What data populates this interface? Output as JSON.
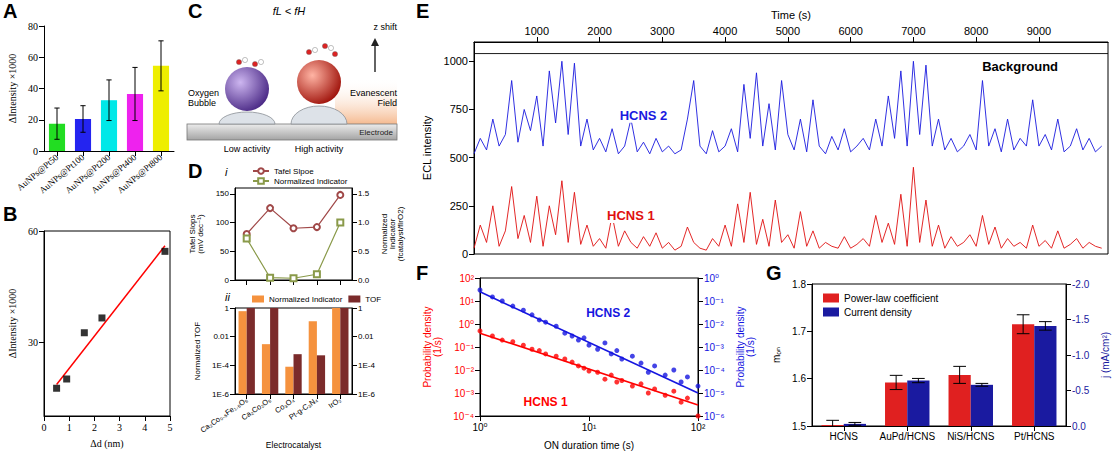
{
  "chart_data": [
    {
      "panel": "A",
      "type": "bar",
      "ylabel": "ΔIntensity ×1000",
      "categories": [
        "AuNPs@Pt50",
        "AuNPs@Pt100",
        "AuNPs@Pt200",
        "AuNPs@Pt400",
        "AuNPs@Pt800"
      ],
      "values": [
        17.5,
        20.5,
        32.5,
        36.5,
        54.5
      ],
      "errors": [
        10,
        8.5,
        13,
        17,
        16
      ],
      "colors": [
        "#22dd22",
        "#2424f0",
        "#00e8e8",
        "#ee22ee",
        "#eeee00"
      ],
      "ylim": [
        0,
        80
      ],
      "yticks": [
        0,
        20,
        40,
        60,
        80
      ],
      "grid": false
    },
    {
      "panel": "B",
      "type": "scatter",
      "xlabel": "Δd (nm)",
      "ylabel": "ΔIntensity ×1000",
      "series": [
        {
          "type": "scatter",
          "marker": "square",
          "color": "#000000",
          "x": [
            0.5,
            0.9,
            1.6,
            2.3,
            4.8
          ],
          "values": [
            17.5,
            20,
            32.5,
            36.5,
            54.5
          ]
        },
        {
          "type": "line",
          "color": "#ff0000",
          "x": [
            0.5,
            4.8
          ],
          "values": [
            18.5,
            56
          ]
        }
      ],
      "xlim": [
        0,
        5
      ],
      "xticks": [
        0,
        1,
        2,
        3,
        4,
        5
      ],
      "ylim": [
        10,
        60
      ],
      "yticks": [
        30,
        60
      ],
      "grid": false
    },
    {
      "panel": "D",
      "subpanel": "i",
      "type": "line",
      "tick_labels": "y",
      "categories": [
        "Ca₂Co₀.₅Fe₁.₅O₅",
        "Ca₂Co₂O₅",
        "Co₃O₄",
        "Pt-g-C₃N₄",
        "IrO₂"
      ],
      "ylabel": "Tafel Slops (mV dec⁻¹)",
      "y2label": "Normalized Indicator (fcatalyst/fIrO2)",
      "legend": "upper left",
      "series": [
        {
          "name": "Tafel Slpoe",
          "color": "#a04848",
          "marker": "circle-open",
          "values": [
            80,
            125,
            90,
            92,
            148
          ]
        },
        {
          "name": "Normalized Indicator",
          "color": "#8a9a4a",
          "marker": "square-open",
          "axis": "y2",
          "values": [
            0.72,
            0.04,
            0.03,
            0.1,
            1.0
          ]
        }
      ],
      "ylim": [
        0,
        160
      ],
      "yticks": [
        0,
        50,
        100,
        150
      ],
      "y2lim": [
        0,
        1.6
      ],
      "y2ticks": [
        {
          "value": 0,
          "label": "0.0"
        },
        0.5,
        {
          "value": 1,
          "label": "1.0"
        },
        1.5
      ],
      "grid": false
    },
    {
      "subpanel": "ii",
      "type": "bar",
      "log": "y",
      "categories": [
        "Ca₂Co₀.₅Fe₁.₅O₅",
        "Ca₂Co₂O₅",
        "Co₃O₄",
        "Pt-g-C₃N₄",
        "IrO₂"
      ],
      "xlabel": "Electrocatalyst",
      "ylabel": "Normalized TOF",
      "legend": "upper left",
      "series": [
        {
          "name": "Normalized Indicator",
          "color": "#f5923e",
          "axis": "y2",
          "values": [
            0.6,
            0.003,
            8e-05,
            0.12,
            1
          ]
        },
        {
          "name": "TOF",
          "color": "#7b2b2b",
          "values": [
            1,
            1,
            0.0006,
            0.0005,
            1
          ]
        }
      ],
      "ylim": [
        1e-06,
        1
      ],
      "yticks": [
        {
          "value": 1e-06,
          "label": "1E-6"
        },
        {
          "value": 0.0001,
          "label": "1E-4"
        },
        0.01,
        1
      ],
      "y2lim": [
        1e-06,
        1
      ],
      "y2ticks": [
        {
          "value": 1e-06,
          "label": "1E-6"
        },
        {
          "value": 0.0001,
          "label": "1E-4"
        },
        0.01,
        1
      ],
      "grid": false
    },
    {
      "panel": "E",
      "type": "line",
      "xlabel": "Time (s)",
      "ylabel": "ECL intensity",
      "x": [
        0,
        100,
        200,
        300,
        400,
        500,
        600,
        700,
        800,
        900,
        1000,
        1100,
        1200,
        1300,
        1400,
        1500,
        1600,
        1700,
        1800,
        1900,
        2000,
        2100,
        2200,
        2300,
        2400,
        2500,
        2600,
        2700,
        2800,
        2900,
        3000,
        3100,
        3200,
        3300,
        3400,
        3500,
        3600,
        3700,
        3800,
        3900,
        4000,
        4100,
        4200,
        4300,
        4400,
        4500,
        4600,
        4700,
        4800,
        4900,
        5000,
        5100,
        5200,
        5300,
        5400,
        5500,
        5600,
        5700,
        5800,
        5900,
        6000,
        6100,
        6200,
        6300,
        6400,
        6500,
        6600,
        6700,
        6800,
        6900,
        7000,
        7100,
        7200,
        7300,
        7400,
        7500,
        7600,
        7700,
        7800,
        7900,
        8000,
        8100,
        8200,
        8300,
        8400,
        8500,
        8600,
        8700,
        8800,
        8900,
        9000,
        9100,
        9200,
        9300,
        9400,
        9500,
        9600,
        9700,
        9800,
        9900,
        10000
      ],
      "series": [
        {
          "name": "HCNS 2",
          "color": "#1a1adf",
          "values": [
            520,
            600,
            540,
            700,
            560,
            620,
            900,
            580,
            750,
            640,
            820,
            560,
            950,
            680,
            1000,
            620,
            990,
            560,
            700,
            540,
            600,
            530,
            650,
            520,
            560,
            700,
            530,
            580,
            520,
            600,
            530,
            560,
            520,
            540,
            700,
            900,
            560,
            520,
            640,
            530,
            560,
            650,
            530,
            880,
            600,
            940,
            560,
            780,
            540,
            900,
            620,
            540,
            700,
            530,
            800,
            560,
            520,
            610,
            540,
            650,
            530,
            560,
            600,
            540,
            700,
            560,
            820,
            600,
            950,
            560,
            1000,
            620,
            980,
            560,
            700,
            540,
            600,
            530,
            560,
            620,
            540,
            900,
            560,
            650,
            530,
            700,
            540,
            600,
            560,
            800,
            560,
            620,
            540,
            700,
            530,
            560,
            650,
            540,
            600,
            530,
            560
          ]
        },
        {
          "name": "HCNS 1",
          "color": "#e01010",
          "values": [
            30,
            150,
            60,
            250,
            40,
            120,
            350,
            80,
            200,
            60,
            300,
            40,
            250,
            100,
            380,
            60,
            320,
            50,
            150,
            40,
            80,
            30,
            200,
            40,
            120,
            60,
            30,
            90,
            40,
            110,
            30,
            60,
            20,
            40,
            140,
            60,
            30,
            20,
            80,
            40,
            150,
            40,
            260,
            60,
            320,
            50,
            180,
            40,
            280,
            60,
            100,
            30,
            220,
            40,
            120,
            30,
            60,
            40,
            30,
            90,
            30,
            50,
            80,
            40,
            200,
            60,
            160,
            50,
            310,
            40,
            450,
            60,
            280,
            40,
            150,
            30,
            90,
            40,
            60,
            100,
            40,
            200,
            50,
            140,
            30,
            80,
            40,
            60,
            30,
            150,
            40,
            70,
            30,
            120,
            30,
            50,
            80,
            30,
            60,
            40,
            30
          ]
        },
        {
          "name": "Background",
          "color": "#000000",
          "x": [
            0,
            10100
          ],
          "values": [
            1040,
            1040
          ]
        }
      ],
      "xlim": [
        0,
        10100
      ],
      "xticks": [
        1000,
        2000,
        3000,
        4000,
        5000,
        6000,
        7000,
        8000,
        9000
      ],
      "ylim": [
        0,
        1100
      ],
      "yticks": [
        0,
        250,
        500,
        750,
        1000
      ],
      "grid": false
    },
    {
      "panel": "F",
      "type": "scatter",
      "log": true,
      "xlabel": "ON duration time (s)",
      "ylabel": "Probability density (1/s)",
      "y2label": "Probability density (1/s)",
      "series": [
        {
          "name": "HCNS 1",
          "type": "scatter",
          "marker": "circle",
          "color": "#ff0000",
          "x": [
            1,
            1.3,
            1.6,
            2,
            2.5,
            3,
            3.5,
            4,
            5,
            6,
            7,
            8,
            9,
            10,
            12,
            14,
            16,
            18,
            20,
            25,
            30,
            35,
            40,
            50,
            60,
            70,
            80,
            100
          ],
          "values": [
            0.5,
            0.3,
            0.2,
            0.17,
            0.12,
            0.08,
            0.07,
            0.05,
            0.04,
            0.03,
            0.022,
            0.015,
            0.012,
            0.009,
            0.008,
            0.004,
            0.006,
            0.003,
            0.0035,
            0.002,
            0.0025,
            0.001,
            0.0015,
            0.0008,
            0.0012,
            0.0004,
            0.0006,
            0.0001
          ]
        },
        {
          "type": "line",
          "color": "#ff0000",
          "x": [
            1,
            100
          ],
          "values": [
            0.4,
            0.0003
          ]
        },
        {
          "name": "HCNS 2",
          "type": "scatter",
          "marker": "circle",
          "color": "#1515e0",
          "axis": "y2",
          "x": [
            1,
            1.3,
            1.6,
            2,
            2.5,
            3,
            3.5,
            4,
            5,
            6,
            7,
            8,
            9,
            10,
            12,
            14,
            16,
            18,
            20,
            25,
            30,
            35,
            40,
            50,
            60,
            70,
            80,
            100
          ],
          "values": [
            0.3,
            0.15,
            0.1,
            0.06,
            0.04,
            0.025,
            0.015,
            0.012,
            0.008,
            0.004,
            0.003,
            0.002,
            0.0025,
            0.0012,
            0.0008,
            0.0015,
            0.0005,
            0.0007,
            0.0003,
            0.0004,
            0.0002,
            8e-05,
            0.00015,
            6e-05,
            0.0001,
            3e-05,
            5e-05,
            2e-05
          ]
        },
        {
          "type": "line",
          "color": "#1515e0",
          "axis": "y2",
          "x": [
            1,
            100
          ],
          "values": [
            0.25,
            1e-05
          ]
        }
      ],
      "xlim": [
        1,
        100
      ],
      "xticks": [
        {
          "value": 1,
          "label": "10⁰"
        },
        {
          "value": 10,
          "label": "10¹"
        },
        {
          "value": 100,
          "label": "10²"
        }
      ],
      "ylim": [
        0.0001,
        100
      ],
      "yticks": [
        {
          "value": 0.0001,
          "label": "10⁻⁴"
        },
        {
          "value": 0.001,
          "label": "10⁻³"
        },
        {
          "value": 0.01,
          "label": "10⁻²"
        },
        {
          "value": 0.1,
          "label": "10⁻¹"
        },
        {
          "value": 1,
          "label": "10⁰"
        },
        {
          "value": 10,
          "label": "10¹"
        },
        {
          "value": 100,
          "label": "10²"
        }
      ],
      "y2lim": [
        1e-06,
        1
      ],
      "y2ticks": [
        {
          "value": 1e-06,
          "label": "10⁻⁶"
        },
        {
          "value": 1e-05,
          "label": "10⁻⁵"
        },
        {
          "value": 0.0001,
          "label": "10⁻⁴"
        },
        {
          "value": 0.001,
          "label": "10⁻³"
        },
        {
          "value": 0.01,
          "label": "10⁻²"
        },
        {
          "value": 0.1,
          "label": "10⁻¹"
        },
        {
          "value": 1,
          "label": "10⁰"
        }
      ],
      "grid": false
    },
    {
      "panel": "G",
      "type": "bar",
      "ylabel": "mₒₙ",
      "y2label": "j (mA/cm²)",
      "legend": "upper left",
      "categories": [
        "HCNS",
        "AuPd/HCNS",
        "NiS/HCNS",
        "Pt/HCNS"
      ],
      "series": [
        {
          "name": "Power-law coefficient",
          "color": "#e02020",
          "values": [
            1.502,
            1.592,
            1.608,
            1.715
          ],
          "errors": [
            0.01,
            0.015,
            0.018,
            0.02
          ]
        },
        {
          "name": "Current density",
          "color": "#1a1aa0",
          "axis": "y2",
          "values": [
            -0.03,
            -0.64,
            -0.58,
            -1.41
          ],
          "errors": [
            0.02,
            0.03,
            0.02,
            0.06
          ]
        }
      ],
      "ylim": [
        1.5,
        1.8
      ],
      "yticks": [
        1.5,
        1.6,
        1.7,
        1.8
      ],
      "y2lim": [
        0,
        -2
      ],
      "y2ticks": [
        {
          "value": 0,
          "label": "0.0"
        },
        -0.5,
        {
          "value": -1,
          "label": "-1.0"
        },
        -1.5,
        {
          "value": -2,
          "label": "-2.0"
        }
      ],
      "grid": false
    }
  ],
  "diagram": {
    "panel": "C",
    "title": "fL < fH",
    "bubble_label": "Oxygen Bubble",
    "low_label": "Low activity",
    "high_label": "High activity",
    "shift_label": "z shift",
    "field_label": "Evanescent Field",
    "electrode_label": "Electrode"
  }
}
